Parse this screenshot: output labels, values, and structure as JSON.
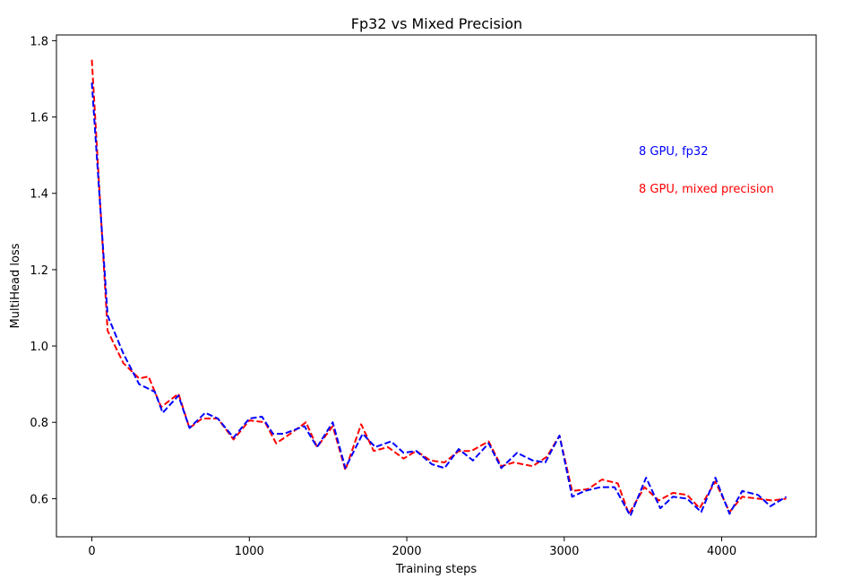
{
  "chart_data": {
    "type": "line",
    "title": "Fp32 vs Mixed Precision",
    "xlabel": "Training steps",
    "ylabel": "MultiHead loss",
    "xlim": [
      -225,
      4600
    ],
    "ylim": [
      0.5,
      1.815
    ],
    "xticks": [
      0,
      1000,
      2000,
      3000,
      4000
    ],
    "yticks": [
      0.6,
      0.8,
      1.0,
      1.2,
      1.4,
      1.6,
      1.8
    ],
    "xtick_labels": [
      "0",
      "1000",
      "2000",
      "3000",
      "4000"
    ],
    "ytick_labels": [
      "0.6",
      "0.8",
      "1.0",
      "1.2",
      "1.4",
      "1.6",
      "1.8"
    ],
    "grid": false,
    "legend_placement": "right, inside plot area as colored text",
    "series": [
      {
        "name": "8 GPU, fp32",
        "color": "#0000ff",
        "linestyle": "dashed",
        "x": [
          0,
          100,
          200,
          300,
          400,
          450,
          550,
          620,
          720,
          800,
          900,
          1000,
          1080,
          1150,
          1220,
          1350,
          1430,
          1530,
          1610,
          1720,
          1800,
          1900,
          1980,
          2060,
          2160,
          2240,
          2330,
          2420,
          2520,
          2600,
          2700,
          2800,
          2880,
          2970,
          3050,
          3130,
          3230,
          3320,
          3420,
          3520,
          3610,
          3690,
          3780,
          3870,
          3960,
          4050,
          4130,
          4230,
          4310,
          4410
        ],
        "y": [
          1.69,
          1.08,
          0.98,
          0.9,
          0.88,
          0.825,
          0.87,
          0.785,
          0.825,
          0.81,
          0.76,
          0.81,
          0.815,
          0.77,
          0.77,
          0.79,
          0.735,
          0.8,
          0.68,
          0.77,
          0.735,
          0.75,
          0.72,
          0.725,
          0.69,
          0.68,
          0.73,
          0.7,
          0.745,
          0.68,
          0.72,
          0.7,
          0.695,
          0.765,
          0.605,
          0.62,
          0.63,
          0.63,
          0.555,
          0.655,
          0.575,
          0.605,
          0.6,
          0.565,
          0.655,
          0.56,
          0.62,
          0.61,
          0.58,
          0.605
        ]
      },
      {
        "name": "8 GPU, mixed precision",
        "color": "#ff0000",
        "linestyle": "dashed",
        "x": [
          0,
          100,
          200,
          300,
          360,
          440,
          550,
          620,
          700,
          800,
          900,
          1000,
          1100,
          1170,
          1260,
          1360,
          1430,
          1530,
          1610,
          1710,
          1790,
          1880,
          1980,
          2060,
          2150,
          2240,
          2330,
          2410,
          2520,
          2600,
          2680,
          2800,
          2890,
          2970,
          3050,
          3150,
          3240,
          3340,
          3410,
          3510,
          3600,
          3690,
          3780,
          3860,
          3960,
          4050,
          4130,
          4230,
          4320,
          4410
        ],
        "y": [
          1.75,
          1.04,
          0.955,
          0.915,
          0.92,
          0.84,
          0.875,
          0.785,
          0.81,
          0.81,
          0.755,
          0.805,
          0.8,
          0.745,
          0.77,
          0.8,
          0.735,
          0.79,
          0.675,
          0.795,
          0.725,
          0.735,
          0.705,
          0.725,
          0.7,
          0.695,
          0.725,
          0.725,
          0.75,
          0.685,
          0.695,
          0.685,
          0.71,
          0.765,
          0.62,
          0.625,
          0.65,
          0.64,
          0.56,
          0.63,
          0.595,
          0.615,
          0.61,
          0.575,
          0.645,
          0.565,
          0.605,
          0.6,
          0.595,
          0.6
        ]
      }
    ]
  }
}
